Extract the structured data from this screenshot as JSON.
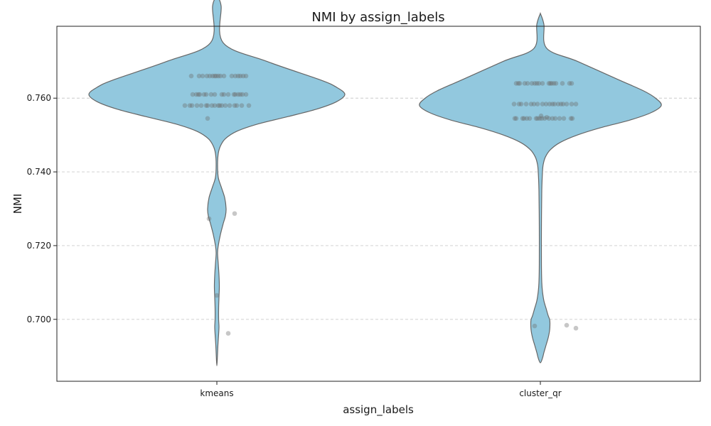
{
  "chart_data": {
    "type": "violin",
    "title": "NMI by assign_labels",
    "xlabel": "assign_labels",
    "ylabel": "NMI",
    "ylim": [
      0.6832,
      0.7795
    ],
    "yticks": [
      0.7,
      0.72,
      0.74,
      0.76
    ],
    "ytick_labels": [
      "0.700",
      "0.720",
      "0.740",
      "0.760"
    ],
    "grid": "y-dashed",
    "violin_color": "#92c8de",
    "point_color": "#6b6b6b",
    "categories": [
      "kmeans",
      "cluster_qr"
    ],
    "violins": [
      {
        "category": "kmeans",
        "profile": [
          [
            0.7875,
            0
          ],
          [
            0.785,
            6
          ],
          [
            0.775,
            9
          ],
          [
            0.77,
            70
          ],
          [
            0.765,
            145
          ],
          [
            0.763,
            168
          ],
          [
            0.761,
            180
          ],
          [
            0.759,
            168
          ],
          [
            0.757,
            140
          ],
          [
            0.755,
            100
          ],
          [
            0.753,
            58
          ],
          [
            0.751,
            28
          ],
          [
            0.749,
            12
          ],
          [
            0.747,
            5
          ],
          [
            0.745,
            2
          ],
          [
            0.742,
            1
          ],
          [
            0.7385,
            2
          ],
          [
            0.736,
            6
          ],
          [
            0.733,
            11
          ],
          [
            0.73,
            13
          ],
          [
            0.728,
            12
          ],
          [
            0.726,
            9
          ],
          [
            0.723,
            5
          ],
          [
            0.72,
            2
          ],
          [
            0.718,
            1
          ],
          [
            0.715,
            2
          ],
          [
            0.712,
            3
          ],
          [
            0.709,
            3.5
          ],
          [
            0.706,
            3
          ],
          [
            0.703,
            2.5
          ],
          [
            0.7,
            2.5
          ],
          [
            0.698,
            3
          ],
          [
            0.696,
            2.5
          ],
          [
            0.693,
            1.5
          ],
          [
            0.69,
            0.8
          ],
          [
            0.6874,
            0
          ]
        ],
        "points": [
          [
            0.766,
            -36
          ],
          [
            0.766,
            -25
          ],
          [
            0.766,
            -20
          ],
          [
            0.766,
            -14
          ],
          [
            0.766,
            -10
          ],
          [
            0.766,
            -6
          ],
          [
            0.766,
            -3
          ],
          [
            0.766,
            -1
          ],
          [
            0.766,
            2
          ],
          [
            0.766,
            5
          ],
          [
            0.766,
            10
          ],
          [
            0.766,
            21
          ],
          [
            0.766,
            26
          ],
          [
            0.766,
            30
          ],
          [
            0.766,
            33
          ],
          [
            0.766,
            37
          ],
          [
            0.766,
            41
          ],
          [
            0.761,
            -34
          ],
          [
            0.761,
            -29
          ],
          [
            0.761,
            -26
          ],
          [
            0.761,
            -24
          ],
          [
            0.761,
            -18
          ],
          [
            0.761,
            -15
          ],
          [
            0.761,
            -8
          ],
          [
            0.761,
            -3
          ],
          [
            0.761,
            7
          ],
          [
            0.761,
            10
          ],
          [
            0.761,
            16
          ],
          [
            0.761,
            24
          ],
          [
            0.761,
            26
          ],
          [
            0.761,
            30
          ],
          [
            0.761,
            33
          ],
          [
            0.761,
            36
          ],
          [
            0.761,
            41
          ],
          [
            0.758,
            -45
          ],
          [
            0.758,
            -38
          ],
          [
            0.758,
            -35
          ],
          [
            0.758,
            -28
          ],
          [
            0.758,
            -22
          ],
          [
            0.758,
            -15
          ],
          [
            0.758,
            -13
          ],
          [
            0.758,
            -7
          ],
          [
            0.758,
            -3
          ],
          [
            0.758,
            2
          ],
          [
            0.758,
            4
          ],
          [
            0.758,
            7
          ],
          [
            0.758,
            12
          ],
          [
            0.758,
            18
          ],
          [
            0.758,
            25
          ],
          [
            0.758,
            28
          ],
          [
            0.758,
            35
          ],
          [
            0.758,
            45
          ],
          [
            0.7545,
            -13
          ],
          [
            0.7273,
            -11
          ],
          [
            0.7287,
            25
          ],
          [
            0.7065,
            0
          ],
          [
            0.6962,
            16
          ]
        ]
      },
      {
        "category": "cluster_qr",
        "profile": [
          [
            0.783,
            0
          ],
          [
            0.78,
            5
          ],
          [
            0.7735,
            9
          ],
          [
            0.77,
            52
          ],
          [
            0.765,
            110
          ],
          [
            0.762,
            145
          ],
          [
            0.76,
            162
          ],
          [
            0.758,
            170
          ],
          [
            0.756,
            155
          ],
          [
            0.754,
            125
          ],
          [
            0.752,
            85
          ],
          [
            0.75,
            52
          ],
          [
            0.748,
            28
          ],
          [
            0.746,
            14
          ],
          [
            0.744,
            7
          ],
          [
            0.742,
            4
          ],
          [
            0.74,
            3
          ],
          [
            0.735,
            2
          ],
          [
            0.725,
            1.5
          ],
          [
            0.715,
            1.5
          ],
          [
            0.71,
            2
          ],
          [
            0.7075,
            3
          ],
          [
            0.705,
            5
          ],
          [
            0.703,
            8
          ],
          [
            0.701,
            11
          ],
          [
            0.7,
            13
          ],
          [
            0.699,
            13.5
          ],
          [
            0.697,
            13
          ],
          [
            0.695,
            11
          ],
          [
            0.693,
            8
          ],
          [
            0.691,
            5
          ],
          [
            0.6895,
            3
          ],
          [
            0.6882,
            0
          ]
        ],
        "points": [
          [
            0.764,
            -34
          ],
          [
            0.764,
            -31
          ],
          [
            0.764,
            -29
          ],
          [
            0.764,
            -22
          ],
          [
            0.764,
            -18
          ],
          [
            0.764,
            -12
          ],
          [
            0.764,
            -8
          ],
          [
            0.764,
            -5
          ],
          [
            0.764,
            -2
          ],
          [
            0.764,
            3
          ],
          [
            0.764,
            12
          ],
          [
            0.764,
            14
          ],
          [
            0.764,
            16
          ],
          [
            0.764,
            19
          ],
          [
            0.764,
            22
          ],
          [
            0.764,
            31
          ],
          [
            0.764,
            41
          ],
          [
            0.764,
            44
          ],
          [
            0.7584,
            -37
          ],
          [
            0.7584,
            -30
          ],
          [
            0.7584,
            -27
          ],
          [
            0.7584,
            -20
          ],
          [
            0.7584,
            -13
          ],
          [
            0.7584,
            -9
          ],
          [
            0.7584,
            -4
          ],
          [
            0.7584,
            3
          ],
          [
            0.7584,
            8
          ],
          [
            0.7584,
            13
          ],
          [
            0.7584,
            17
          ],
          [
            0.7584,
            20
          ],
          [
            0.7584,
            25
          ],
          [
            0.7584,
            29
          ],
          [
            0.7584,
            32
          ],
          [
            0.7584,
            37
          ],
          [
            0.7584,
            44
          ],
          [
            0.7584,
            50
          ],
          [
            0.7545,
            -36
          ],
          [
            0.7545,
            -34
          ],
          [
            0.7545,
            -25
          ],
          [
            0.7545,
            -23
          ],
          [
            0.7545,
            -19
          ],
          [
            0.7545,
            -15
          ],
          [
            0.7545,
            -6
          ],
          [
            0.7545,
            -4
          ],
          [
            0.7545,
            -1
          ],
          [
            0.7545,
            2
          ],
          [
            0.7545,
            6
          ],
          [
            0.7545,
            12
          ],
          [
            0.7545,
            17
          ],
          [
            0.7545,
            21
          ],
          [
            0.7545,
            27
          ],
          [
            0.7545,
            33
          ],
          [
            0.7545,
            43
          ],
          [
            0.7545,
            45
          ],
          [
            0.7552,
            1
          ],
          [
            0.7548,
            9
          ],
          [
            0.6982,
            -8
          ],
          [
            0.6984,
            37
          ],
          [
            0.6976,
            50
          ]
        ]
      }
    ]
  }
}
